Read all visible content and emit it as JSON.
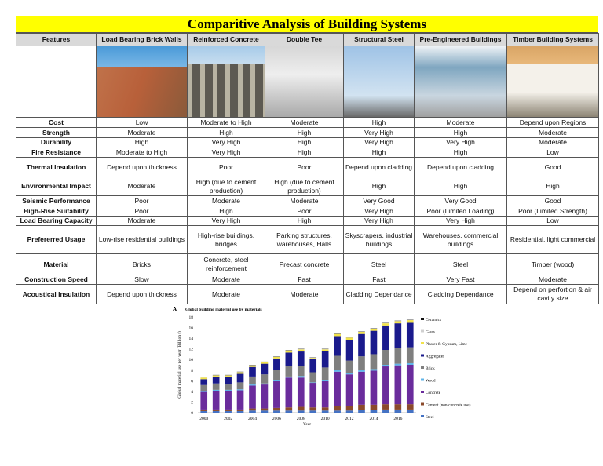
{
  "title": "Comparitive Analysis of Building Systems",
  "columns": [
    "Features",
    "Load Bearing Brick Walls",
    "Reinforced Concrete",
    "Double Tee",
    "Structural Steel",
    "Pre-Engineered Buildings",
    "Timber Building Systems"
  ],
  "rows": [
    {
      "feature": "Cost",
      "values": [
        "Low",
        "Moderate to High",
        "Moderate",
        "High",
        "Moderate",
        "Depend upon Regions"
      ]
    },
    {
      "feature": "Strength",
      "values": [
        "Moderate",
        "High",
        "High",
        "Very High",
        "High",
        "Moderate"
      ]
    },
    {
      "feature": "Durability",
      "values": [
        "High",
        "Very High",
        "High",
        "Very High",
        "Very High",
        "Moderate"
      ]
    },
    {
      "feature": "Fire Resistance",
      "values": [
        "Moderate to High",
        "Very High",
        "High",
        "High",
        "High",
        "Low"
      ]
    },
    {
      "feature": "Thermal Insulation",
      "values": [
        "Depend upon thickness",
        "Poor",
        "Poor",
        "Depend upon cladding",
        "Depend upon cladding",
        "Good"
      ]
    },
    {
      "feature": "Environmental Impact",
      "values": [
        "Moderate",
        "High (due to cement production)",
        "High (due to cement production)",
        "High",
        "High",
        "High"
      ]
    },
    {
      "feature": "Seismic Performance",
      "values": [
        "Poor",
        "Moderate",
        "Moderate",
        "Very Good",
        "Very Good",
        "Good"
      ]
    },
    {
      "feature": "High-Rise Suitability",
      "values": [
        "Poor",
        "High",
        "Poor",
        "Very High",
        "Poor (Limited Loading)",
        "Poor (Limited Strength)"
      ]
    },
    {
      "feature": "Load Bearing Capacity",
      "values": [
        "Moderate",
        "Very High",
        "High",
        "Very High",
        "Very High",
        "Low"
      ]
    },
    {
      "feature": "Prefererred Usage",
      "values": [
        "Low-rise residential buildings",
        "High-rise buildings, bridges",
        "Parking structures, warehouses, Halls",
        "Skyscrapers, industrial buildings",
        "Warehouses, commercial buildings",
        "Residential, light commercial"
      ]
    },
    {
      "feature": "Material",
      "values": [
        "Bricks",
        "Concrete, steel reinforcement",
        "Precast concrete",
        "Steel",
        "Steel",
        "Timber (wood)"
      ]
    },
    {
      "feature": "Construction Speed",
      "values": [
        "Slow",
        "Moderate",
        "Fast",
        "Fast",
        "Very Fast",
        "Moderate"
      ]
    },
    {
      "feature": "Acoustical Insulation",
      "values": [
        "Depend upon thickness",
        "Moderate",
        "Moderate",
        "Cladding Dependance",
        "Cladding Dependance",
        "Depend on perfortion & air cavity size"
      ]
    }
  ],
  "images": [
    "brick-walls-photo",
    "reinforced-concrete-photo",
    "double-tee-photo",
    "structural-steel-photo",
    "pre-engineered-photo",
    "timber-photo"
  ],
  "chart_data": {
    "type": "bar",
    "stacked": true,
    "panel_label": "A",
    "title": "Global building material use by materials",
    "xlabel": "Year",
    "ylabel": "Global material use per year (Billion t)",
    "ylim": [
      0,
      18
    ],
    "yticks": [
      0,
      2,
      4,
      6,
      8,
      10,
      12,
      14,
      16,
      18
    ],
    "xtick_labels": [
      "2000",
      "2002",
      "2004",
      "2006",
      "2008",
      "2010",
      "2012",
      "2014",
      "2016"
    ],
    "legend_placement": "right",
    "categories": [
      2000,
      2001,
      2002,
      2003,
      2004,
      2005,
      2006,
      2007,
      2008,
      2009,
      2010,
      2011,
      2012,
      2013,
      2014,
      2015,
      2016,
      2017
    ],
    "series": [
      {
        "name": "Steel",
        "color": "#4472c4",
        "values": [
          0.3,
          0.3,
          0.3,
          0.3,
          0.4,
          0.4,
          0.4,
          0.4,
          0.4,
          0.4,
          0.4,
          0.4,
          0.4,
          0.5,
          0.5,
          0.6,
          0.6,
          0.6
        ]
      },
      {
        "name": "Cement (non-concrete use)",
        "color": "#8b4a2b",
        "values": [
          0.3,
          0.3,
          0.3,
          0.3,
          0.4,
          0.4,
          0.5,
          0.6,
          0.7,
          0.6,
          0.6,
          0.9,
          0.9,
          1.0,
          1.0,
          1.0,
          1.0,
          1.0
        ]
      },
      {
        "name": "Concrete",
        "color": "#6a2c9c",
        "values": [
          3.3,
          3.5,
          3.5,
          3.6,
          4.3,
          4.5,
          5.0,
          5.6,
          5.5,
          4.6,
          4.9,
          6.4,
          5.9,
          6.2,
          6.4,
          7.1,
          7.3,
          7.4
        ]
      },
      {
        "name": "Wood",
        "color": "#5fb4e8",
        "values": [
          0.2,
          0.2,
          0.2,
          0.2,
          0.2,
          0.2,
          0.2,
          0.2,
          0.3,
          0.1,
          0.2,
          0.3,
          0.3,
          0.3,
          0.3,
          0.3,
          0.3,
          0.3
        ]
      },
      {
        "name": "Brick",
        "color": "#7f7f7f",
        "values": [
          1.1,
          1.2,
          1.0,
          1.3,
          1.5,
          1.7,
          1.9,
          2.0,
          1.9,
          1.9,
          2.4,
          2.7,
          2.3,
          2.6,
          2.8,
          2.8,
          3.0,
          3.0
        ]
      },
      {
        "name": "Aggregates",
        "color": "#1a1a8c",
        "values": [
          1.1,
          1.3,
          1.5,
          1.6,
          1.8,
          2.0,
          2.2,
          2.5,
          2.7,
          2.5,
          3.1,
          3.7,
          3.9,
          4.2,
          4.4,
          4.6,
          4.6,
          4.6
        ]
      },
      {
        "name": "Plaster & Gypsum, Lime",
        "color": "#f2e34a",
        "values": [
          0.3,
          0.2,
          0.2,
          0.3,
          0.3,
          0.3,
          0.3,
          0.4,
          0.4,
          0.2,
          0.3,
          0.4,
          0.4,
          0.4,
          0.4,
          0.4,
          0.4,
          0.5
        ]
      },
      {
        "name": "Glass",
        "color": "#d0d0d0",
        "values": [
          0.05,
          0.05,
          0.05,
          0.05,
          0.05,
          0.05,
          0.05,
          0.05,
          0.05,
          0.05,
          0.05,
          0.05,
          0.05,
          0.05,
          0.05,
          0.05,
          0.05,
          0.05
        ]
      },
      {
        "name": "Ceramics",
        "color": "#111111",
        "values": [
          0.05,
          0.05,
          0.05,
          0.05,
          0.05,
          0.05,
          0.05,
          0.05,
          0.05,
          0.05,
          0.05,
          0.05,
          0.05,
          0.05,
          0.05,
          0.05,
          0.05,
          0.05
        ]
      }
    ]
  }
}
